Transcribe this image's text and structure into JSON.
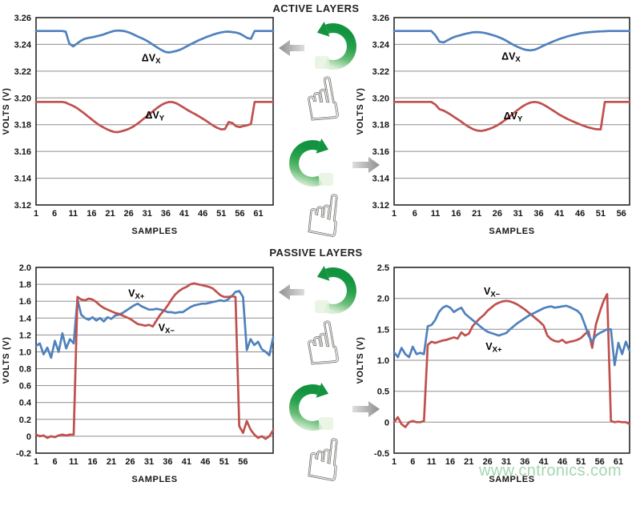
{
  "page": {
    "titles": {
      "active": "ACTIVE LAYERS",
      "passive": "PASSIVE LAYERS"
    },
    "watermark": "www.cntronics.com",
    "colors": {
      "series_blue": "#4f81bd",
      "series_red": "#c0504d",
      "grid": "#8e8e8e",
      "axis": "#262626",
      "green_arrow": "#22a24c",
      "gray_arrow": "#9a9a9a",
      "watermark": "#96cfa4"
    }
  },
  "icons": {
    "rotate_ccw": "rotate-ccw-icon",
    "rotate_cw": "rotate-cw-icon",
    "arrow_left": "arrow-left-icon",
    "arrow_right": "arrow-right-icon",
    "hand": "hand-pointer-icon",
    "hand_glyph": "☝"
  },
  "chart_data": [
    {
      "id": "active-left",
      "type": "line",
      "section": "ACTIVE LAYERS",
      "xlabel": "SAMPLES",
      "ylabel": "VOLTS (V)",
      "x_start": 1,
      "xlim": [
        1,
        65
      ],
      "xticks": [
        1,
        6,
        11,
        16,
        21,
        26,
        31,
        36,
        41,
        46,
        51,
        56,
        61
      ],
      "ylim": [
        3.12,
        3.26
      ],
      "yticks": [
        3.26,
        3.24,
        3.22,
        3.2,
        3.18,
        3.16,
        3.14,
        3.12
      ],
      "ytick_labels": [
        "3.26",
        "3.24",
        "3.22",
        "3.20",
        "3.18",
        "3.16",
        "3.14",
        "3.12"
      ],
      "grid": true,
      "series": [
        {
          "name": "dVx",
          "label": {
            "main": "ΔV",
            "sub": "X",
            "x": 29.5,
            "y": 3.2275
          },
          "color": "#4f81bd",
          "values": [
            3.25,
            3.25,
            3.25,
            3.25,
            3.25,
            3.25,
            3.25,
            3.25,
            3.2495,
            3.2405,
            3.2385,
            3.2405,
            3.2425,
            3.244,
            3.2448,
            3.2452,
            3.2458,
            3.2465,
            3.2472,
            3.2482,
            3.2492,
            3.25,
            3.2503,
            3.2502,
            3.2498,
            3.249,
            3.2478,
            3.2465,
            3.2452,
            3.244,
            3.2425,
            3.2408,
            3.239,
            3.2372,
            3.2355,
            3.2343,
            3.234,
            3.2345,
            3.2352,
            3.2362,
            3.2375,
            3.239,
            3.2405,
            3.2418,
            3.2432,
            3.2443,
            3.2455,
            3.2465,
            3.2475,
            3.2483,
            3.249,
            3.2494,
            3.2495,
            3.2492,
            3.2488,
            3.248,
            3.2465,
            3.2448,
            3.2442,
            3.25,
            3.25,
            3.25,
            3.25,
            3.25,
            3.25
          ]
        },
        {
          "name": "dVy",
          "label": {
            "main": "ΔV",
            "sub": "Y",
            "x": 30.5,
            "y": 3.1845
          },
          "color": "#c0504d",
          "values": [
            3.197,
            3.197,
            3.197,
            3.197,
            3.197,
            3.197,
            3.197,
            3.197,
            3.1965,
            3.1952,
            3.194,
            3.1925,
            3.1905,
            3.1885,
            3.1862,
            3.184,
            3.1818,
            3.1798,
            3.1782,
            3.1768,
            3.1755,
            3.1746,
            3.1744,
            3.175,
            3.1758,
            3.1768,
            3.1782,
            3.18,
            3.182,
            3.1843,
            3.1865,
            3.1888,
            3.191,
            3.1932,
            3.195,
            3.1963,
            3.197,
            3.1968,
            3.1958,
            3.1942,
            3.1925,
            3.1908,
            3.1892,
            3.1878,
            3.1862,
            3.1845,
            3.1827,
            3.1808,
            3.179,
            3.1775,
            3.1765,
            3.1768,
            3.182,
            3.1812,
            3.1788,
            3.1782,
            3.179,
            3.1795,
            3.1805,
            3.197,
            3.197,
            3.197,
            3.197,
            3.197,
            3.197
          ]
        }
      ]
    },
    {
      "id": "active-right",
      "type": "line",
      "section": "ACTIVE LAYERS",
      "xlabel": "SAMPLES",
      "ylabel": "VOLTS (V)",
      "x_start": 1,
      "xlim": [
        1,
        58
      ],
      "xticks": [
        1,
        6,
        11,
        16,
        21,
        26,
        31,
        36,
        41,
        46,
        51,
        56
      ],
      "ylim": [
        3.12,
        3.26
      ],
      "yticks": [
        3.26,
        3.24,
        3.22,
        3.2,
        3.18,
        3.16,
        3.14,
        3.12
      ],
      "ytick_labels": [
        "3.26",
        "3.24",
        "3.22",
        "3.20",
        "3.18",
        "3.16",
        "3.14",
        "3.12"
      ],
      "grid": true,
      "series": [
        {
          "name": "dVx",
          "label": {
            "main": "ΔV",
            "sub": "X",
            "x": 27,
            "y": 3.2285
          },
          "color": "#4f81bd",
          "values": [
            3.25,
            3.25,
            3.25,
            3.25,
            3.25,
            3.25,
            3.25,
            3.25,
            3.25,
            3.25,
            3.2468,
            3.242,
            3.2415,
            3.2432,
            3.2448,
            3.246,
            3.2468,
            3.2477,
            3.2484,
            3.249,
            3.2492,
            3.249,
            3.2485,
            3.2477,
            3.2468,
            3.2458,
            3.2445,
            3.243,
            3.2412,
            3.2395,
            3.238,
            3.2367,
            3.2358,
            3.2355,
            3.236,
            3.2372,
            3.2388,
            3.2402,
            3.2415,
            3.2428,
            3.244,
            3.245,
            3.246,
            3.2468,
            3.2475,
            3.2482,
            3.2487,
            3.249,
            3.2493,
            3.2495,
            3.2497,
            3.2498,
            3.25,
            3.25,
            3.25,
            3.25,
            3.25,
            3.25
          ]
        },
        {
          "name": "dVy",
          "label": {
            "main": "ΔV",
            "sub": "Y",
            "x": 27.5,
            "y": 3.184
          },
          "color": "#c0504d",
          "values": [
            3.197,
            3.197,
            3.197,
            3.197,
            3.197,
            3.197,
            3.197,
            3.197,
            3.197,
            3.197,
            3.195,
            3.1915,
            3.1905,
            3.1888,
            3.1868,
            3.1848,
            3.1828,
            3.1805,
            3.1785,
            3.1768,
            3.1757,
            3.1753,
            3.1758,
            3.1768,
            3.178,
            3.1795,
            3.1815,
            3.1838,
            3.1862,
            3.1888,
            3.1912,
            3.1935,
            3.1953,
            3.1965,
            3.197,
            3.1965,
            3.1952,
            3.1935,
            3.1915,
            3.1895,
            3.1875,
            3.1858,
            3.1842,
            3.1828,
            3.1815,
            3.1802,
            3.179,
            3.178,
            3.1772,
            3.1766,
            3.1764,
            3.197,
            3.197,
            3.197,
            3.197,
            3.197,
            3.197,
            3.197
          ]
        }
      ]
    },
    {
      "id": "passive-left",
      "type": "line",
      "section": "PASSIVE LAYERS",
      "xlabel": "SAMPLES",
      "ylabel": "VOLTS (V)",
      "x_start": 1,
      "xlim": [
        1,
        64
      ],
      "xticks": [
        1,
        6,
        11,
        16,
        21,
        26,
        31,
        36,
        41,
        46,
        51,
        56
      ],
      "ylim": [
        -0.2,
        2.0
      ],
      "yticks": [
        2.0,
        1.8,
        1.6,
        1.4,
        1.2,
        1.0,
        0.8,
        0.6,
        0.4,
        0.2,
        0,
        -0.2
      ],
      "ytick_labels": [
        "2.0",
        "1.8",
        "1.6",
        "1.4",
        "1.2",
        "1.0",
        "0.8",
        "0.6",
        "0.4",
        "0.2",
        "0",
        "-0.2"
      ],
      "grid": true,
      "series": [
        {
          "name": "Vx+",
          "label": {
            "main": "V",
            "sub": "X+",
            "x": 25.5,
            "y": 1.655
          },
          "color": "#4f81bd",
          "values": [
            1.07,
            1.1,
            0.97,
            1.05,
            0.93,
            1.13,
            1.0,
            1.22,
            1.04,
            1.15,
            1.1,
            1.62,
            1.44,
            1.4,
            1.38,
            1.41,
            1.37,
            1.4,
            1.36,
            1.41,
            1.39,
            1.43,
            1.44,
            1.46,
            1.49,
            1.52,
            1.55,
            1.57,
            1.54,
            1.52,
            1.5,
            1.5,
            1.51,
            1.5,
            1.49,
            1.47,
            1.47,
            1.46,
            1.47,
            1.47,
            1.5,
            1.53,
            1.55,
            1.56,
            1.57,
            1.57,
            1.58,
            1.59,
            1.6,
            1.61,
            1.6,
            1.62,
            1.66,
            1.71,
            1.72,
            1.65,
            1.02,
            1.15,
            1.08,
            1.12,
            1.03,
            1.0,
            0.96,
            1.17
          ]
        },
        {
          "name": "Vx-",
          "label": {
            "main": "V",
            "sub": "X−",
            "x": 33.5,
            "y": 1.245
          },
          "color": "#c0504d",
          "values": [
            0.02,
            0.0,
            0.01,
            -0.02,
            0.0,
            -0.01,
            0.01,
            0.02,
            0.01,
            0.02,
            0.02,
            1.65,
            1.62,
            1.61,
            1.63,
            1.62,
            1.59,
            1.55,
            1.52,
            1.5,
            1.48,
            1.46,
            1.45,
            1.43,
            1.41,
            1.39,
            1.36,
            1.33,
            1.32,
            1.31,
            1.32,
            1.3,
            1.37,
            1.44,
            1.49,
            1.55,
            1.62,
            1.68,
            1.72,
            1.75,
            1.77,
            1.8,
            1.81,
            1.8,
            1.79,
            1.78,
            1.77,
            1.75,
            1.71,
            1.67,
            1.65,
            1.65,
            1.66,
            1.65,
            0.12,
            0.04,
            0.18,
            0.08,
            0.02,
            -0.02,
            0.0,
            -0.03,
            0.0,
            0.07
          ]
        }
      ]
    },
    {
      "id": "passive-right",
      "type": "line",
      "section": "PASSIVE LAYERS",
      "xlabel": "SAMPLES",
      "ylabel": "VOLTS (V)",
      "x_start": 1,
      "xlim": [
        1,
        64
      ],
      "xticks": [
        1,
        6,
        11,
        16,
        21,
        26,
        31,
        36,
        41,
        46,
        51,
        56,
        61
      ],
      "ylim": [
        -0.5,
        2.5
      ],
      "yticks": [
        2.5,
        2.0,
        1.5,
        1.0,
        0.5,
        0,
        -0.5
      ],
      "ytick_labels": [
        "2.5",
        "2.0",
        "1.5",
        "1.0",
        "0.5",
        "0",
        "-0.5"
      ],
      "grid": true,
      "series": [
        {
          "name": "Vx-",
          "label": {
            "main": "V",
            "sub": "X−",
            "x": 25,
            "y": 2.06
          },
          "color": "#c0504d",
          "values": [
            0.0,
            0.08,
            -0.03,
            -0.08,
            0.0,
            0.02,
            0.0,
            0.0,
            0.02,
            1.25,
            1.3,
            1.28,
            1.3,
            1.32,
            1.33,
            1.35,
            1.37,
            1.35,
            1.45,
            1.4,
            1.43,
            1.55,
            1.62,
            1.68,
            1.73,
            1.8,
            1.85,
            1.9,
            1.93,
            1.95,
            1.96,
            1.95,
            1.93,
            1.9,
            1.86,
            1.82,
            1.77,
            1.72,
            1.67,
            1.62,
            1.56,
            1.4,
            1.34,
            1.31,
            1.3,
            1.33,
            1.28,
            1.3,
            1.31,
            1.33,
            1.36,
            1.42,
            1.47,
            1.2,
            1.58,
            1.78,
            1.95,
            2.07,
            0.02,
            0.0,
            0.01,
            0.0,
            0.0,
            -0.03
          ]
        },
        {
          "name": "Vx+",
          "label": {
            "main": "V",
            "sub": "X+",
            "x": 25.5,
            "y": 1.17
          },
          "color": "#4f81bd",
          "values": [
            1.13,
            1.05,
            1.2,
            1.1,
            1.05,
            1.22,
            1.1,
            1.12,
            1.1,
            1.55,
            1.57,
            1.65,
            1.78,
            1.85,
            1.88,
            1.85,
            1.78,
            1.82,
            1.85,
            1.75,
            1.7,
            1.65,
            1.6,
            1.55,
            1.5,
            1.46,
            1.44,
            1.42,
            1.4,
            1.42,
            1.44,
            1.5,
            1.55,
            1.6,
            1.64,
            1.68,
            1.72,
            1.75,
            1.78,
            1.81,
            1.84,
            1.86,
            1.87,
            1.85,
            1.86,
            1.87,
            1.88,
            1.86,
            1.83,
            1.8,
            1.74,
            1.58,
            1.4,
            1.3,
            1.4,
            1.44,
            1.47,
            1.5,
            1.5,
            0.92,
            1.28,
            1.1,
            1.3,
            1.15
          ]
        }
      ]
    }
  ]
}
